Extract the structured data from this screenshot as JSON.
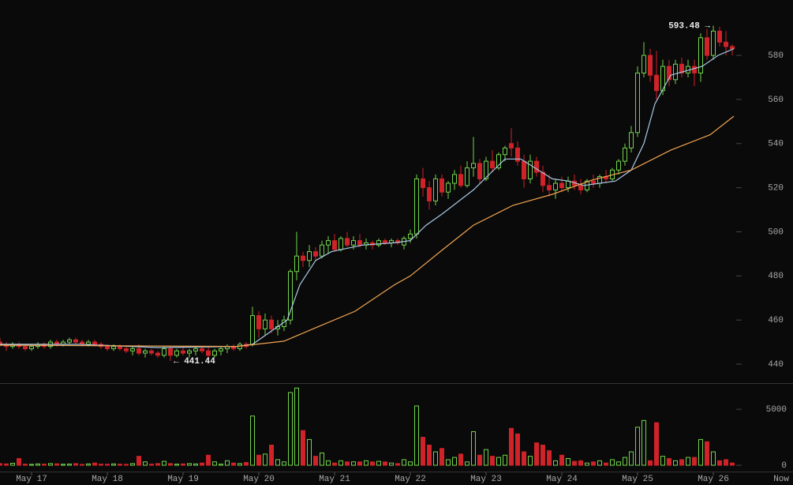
{
  "chart_data": {
    "type": "candlestick",
    "x": [
      -10,
      -8,
      -6,
      -4,
      -2,
      0,
      2,
      4,
      6,
      8,
      10,
      12,
      14,
      16,
      18,
      20,
      22,
      24,
      26,
      28,
      30,
      32,
      34,
      36,
      38,
      40,
      42,
      44,
      46,
      48,
      50,
      52,
      54,
      56,
      58,
      60,
      62,
      64,
      66,
      68,
      70,
      72,
      74,
      76,
      78,
      80,
      82,
      84,
      86,
      88,
      90,
      92,
      94,
      96,
      98,
      100,
      102,
      104,
      106,
      108,
      110,
      112,
      114,
      116,
      118,
      120,
      122,
      124,
      126,
      128,
      130,
      132,
      134,
      136,
      138,
      140,
      142,
      144,
      146,
      148,
      150,
      152,
      154,
      156,
      158,
      160,
      162,
      164,
      166,
      168,
      170,
      172,
      174,
      176,
      178,
      180,
      182,
      184,
      186,
      188,
      190,
      192,
      194,
      196,
      198,
      200,
      202,
      204,
      206,
      208,
      210,
      212,
      214,
      216,
      218,
      220,
      222
    ],
    "open": [
      450,
      449,
      448,
      449,
      448,
      447,
      448,
      449,
      448,
      450,
      449,
      450,
      451,
      450,
      449,
      450,
      449,
      448,
      447,
      448,
      447,
      446,
      447,
      445,
      446,
      445,
      444,
      447,
      444,
      446,
      445,
      446,
      447,
      446,
      444,
      446,
      447,
      448,
      447,
      449,
      449,
      462,
      456,
      460,
      456,
      457,
      460,
      482,
      489,
      487,
      491,
      489,
      494,
      496,
      492,
      497,
      494,
      496,
      494,
      495,
      494,
      496,
      495,
      496,
      494,
      497,
      499,
      524,
      520,
      514,
      524,
      518,
      522,
      526,
      521,
      529,
      531,
      524,
      532,
      529,
      535,
      540,
      538,
      532,
      524,
      532,
      527,
      521,
      519,
      522,
      520,
      523,
      521,
      519,
      523,
      522,
      525,
      524,
      528,
      532,
      538,
      545,
      572,
      580,
      571,
      564,
      575,
      569,
      576,
      572,
      575,
      572,
      588,
      580,
      591,
      586,
      584
    ],
    "high": [
      452,
      450,
      450,
      450,
      449,
      449,
      450,
      450,
      451,
      451,
      451,
      452,
      452,
      451,
      451,
      451,
      450,
      449,
      449,
      449,
      448,
      448,
      449,
      447,
      447,
      446,
      448,
      448,
      447,
      448,
      447,
      448,
      448,
      448,
      447,
      448,
      449,
      449,
      450,
      450,
      466,
      464,
      463,
      462,
      460,
      462,
      483,
      500,
      491,
      494,
      493,
      496,
      498,
      499,
      498,
      500,
      498,
      499,
      497,
      496,
      497,
      497,
      497,
      497,
      498,
      501,
      526,
      529,
      523,
      526,
      526,
      523,
      528,
      530,
      532,
      543,
      533,
      534,
      537,
      536,
      539,
      547,
      541,
      535,
      535,
      534,
      530,
      526,
      524,
      525,
      525,
      526,
      524,
      524,
      526,
      526,
      528,
      529,
      533,
      540,
      548,
      575,
      586,
      583,
      582,
      578,
      578,
      578,
      579,
      578,
      578,
      590,
      592,
      593.48,
      593,
      591,
      585
    ],
    "low": [
      448,
      446,
      447,
      447,
      446,
      446,
      447,
      447,
      447,
      448,
      448,
      449,
      449,
      448,
      448,
      448,
      447,
      446,
      446,
      446,
      445,
      444,
      444,
      443,
      444,
      443,
      443,
      441.44,
      443,
      444,
      443,
      444,
      445,
      443,
      443,
      444,
      445,
      446,
      446,
      447,
      448,
      452,
      453,
      454,
      453,
      455,
      458,
      478,
      484,
      484,
      487,
      488,
      490,
      491,
      491,
      493,
      492,
      493,
      492,
      492,
      493,
      494,
      493,
      494,
      492,
      495,
      497,
      516,
      510,
      512,
      516,
      515,
      519,
      520,
      520,
      525,
      522,
      523,
      527,
      528,
      532,
      534,
      530,
      520,
      522,
      525,
      518,
      516,
      515,
      518,
      518,
      519,
      517,
      518,
      520,
      520,
      522,
      523,
      526,
      530,
      536,
      543,
      570,
      568,
      560,
      562,
      566,
      567,
      570,
      570,
      566,
      568,
      578,
      578,
      584,
      580,
      580
    ],
    "close": [
      449,
      448,
      449,
      448,
      447,
      448,
      449,
      448,
      450,
      449,
      450,
      451,
      450,
      449,
      450,
      449,
      448,
      447,
      448,
      447,
      446,
      447,
      445,
      446,
      445,
      444,
      447,
      444,
      446,
      445,
      446,
      447,
      446,
      444,
      446,
      447,
      448,
      447,
      449,
      448,
      462,
      456,
      460,
      456,
      457,
      460,
      482,
      489,
      487,
      491,
      489,
      494,
      496,
      492,
      497,
      494,
      496,
      494,
      495,
      494,
      496,
      495,
      496,
      495,
      497,
      499,
      524,
      520,
      514,
      524,
      518,
      522,
      526,
      521,
      529,
      531,
      524,
      532,
      529,
      535,
      538,
      538,
      532,
      524,
      532,
      527,
      521,
      519,
      522,
      520,
      523,
      521,
      519,
      523,
      522,
      525,
      524,
      528,
      532,
      538,
      545,
      572,
      580,
      571,
      564,
      575,
      569,
      576,
      572,
      575,
      572,
      588,
      580,
      591,
      586,
      584,
      583
    ],
    "volume": [
      150,
      120,
      180,
      600,
      100,
      80,
      120,
      100,
      150,
      130,
      90,
      110,
      150,
      80,
      120,
      200,
      100,
      90,
      120,
      100,
      80,
      150,
      800,
      300,
      100,
      150,
      350,
      150,
      100,
      120,
      150,
      120,
      200,
      900,
      300,
      100,
      400,
      200,
      150,
      250,
      4400,
      900,
      1000,
      1800,
      500,
      300,
      6500,
      6900,
      3100,
      2300,
      800,
      1100,
      400,
      200,
      400,
      300,
      300,
      300,
      400,
      300,
      350,
      300,
      200,
      150,
      500,
      300,
      5300,
      2500,
      1800,
      1200,
      1500,
      500,
      700,
      1000,
      300,
      3000,
      900,
      1400,
      800,
      700,
      900,
      3300,
      2800,
      1200,
      800,
      2000,
      1800,
      1300,
      400,
      900,
      600,
      350,
      400,
      200,
      300,
      400,
      200,
      500,
      300,
      700,
      1200,
      3400,
      4000,
      400,
      3800,
      800,
      600,
      400,
      500,
      700,
      700,
      2300,
      2100,
      1200,
      400,
      500,
      200
    ],
    "up_color": "#72d44c",
    "down_color": "#cf2229",
    "lines": [
      {
        "color": "#a9c9e6",
        "x": [
          -10,
          15,
          40,
          65,
          70,
          81,
          85,
          90,
          95,
          105,
          115,
          120,
          125,
          130,
          140,
          150,
          155,
          165,
          170,
          175,
          180,
          185,
          190,
          194,
          197.5,
          202.5,
          207.5,
          212.5,
          217.5,
          222.5
        ],
        "values": [
          449,
          449,
          447.5,
          448,
          449,
          460,
          476,
          487,
          491,
          494,
          495,
          496,
          503,
          508,
          519,
          533,
          533,
          524,
          523,
          521,
          522,
          523,
          528,
          540,
          558,
          571,
          573,
          575,
          580,
          583
        ]
      },
      {
        "color": "#f0a452",
        "x": [
          -10,
          65,
          80,
          90,
          102.5,
          115,
          120,
          130,
          140,
          152.5,
          165,
          177.5,
          190,
          202.5,
          215,
          222.5
        ],
        "values": [
          448.6,
          448,
          450.4,
          456.5,
          464,
          476,
          480,
          491.6,
          503,
          512,
          517,
          523.4,
          528,
          537,
          544,
          552.4
        ]
      }
    ],
    "annotations": [
      {
        "label": "593.48 →",
        "x": 216,
        "value": 593.48
      },
      {
        "label": "← 441.44",
        "x": 44,
        "value": 441.44
      }
    ],
    "xlim": [
      -10,
      225
    ],
    "xticks": [
      {
        "value": 0,
        "label": "May 17"
      },
      {
        "value": 24,
        "label": "May 18"
      },
      {
        "value": 48,
        "label": "May 19"
      },
      {
        "value": 72,
        "label": "May 20"
      },
      {
        "value": 96,
        "label": "May 21"
      },
      {
        "value": 120,
        "label": "May 22"
      },
      {
        "value": 144,
        "label": "May 23"
      },
      {
        "value": 168,
        "label": "May 24"
      },
      {
        "value": 192,
        "label": "May 25"
      },
      {
        "value": 216,
        "label": "May 26"
      }
    ],
    "x_end_label": "Now",
    "ylim": [
      431.4,
      605.1
    ],
    "yticks": [
      440,
      460,
      480,
      500,
      520,
      540,
      560,
      580
    ],
    "volume_ylim": [
      0,
      7200
    ],
    "volume_yticks": [
      0,
      5000
    ]
  }
}
